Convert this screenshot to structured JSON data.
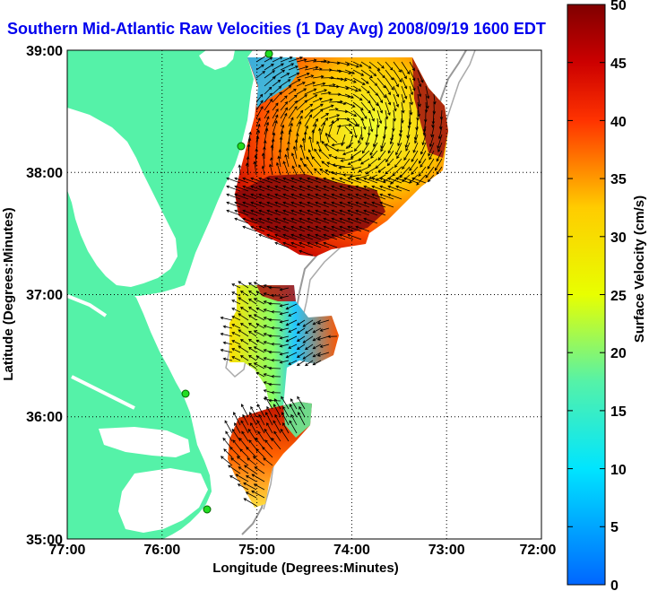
{
  "title": "Southern Mid-Atlantic Raw Velocities (1 Day Avg) 2008/09/19 1600 EDT",
  "x_axis": {
    "label": "Longitude (Degrees:Minutes)",
    "ticks": [
      "77:00",
      "76:00",
      "75:00",
      "74:00",
      "73:00",
      "72:00"
    ]
  },
  "y_axis": {
    "label": "Latitude (Degrees:Minutes)",
    "ticks": [
      "39:00",
      "38:00",
      "37:00",
      "36:00",
      "35:00"
    ]
  },
  "colorbar": {
    "label": "Surface Velocity (cm/s)",
    "ticks": [
      "50",
      "45",
      "40",
      "35",
      "30",
      "25",
      "20",
      "15",
      "10",
      "5",
      "0"
    ],
    "min": 0,
    "max": 50
  },
  "colors": {
    "land": "#55f2a8",
    "title": "#0000ee",
    "station": "#22dd22"
  }
}
